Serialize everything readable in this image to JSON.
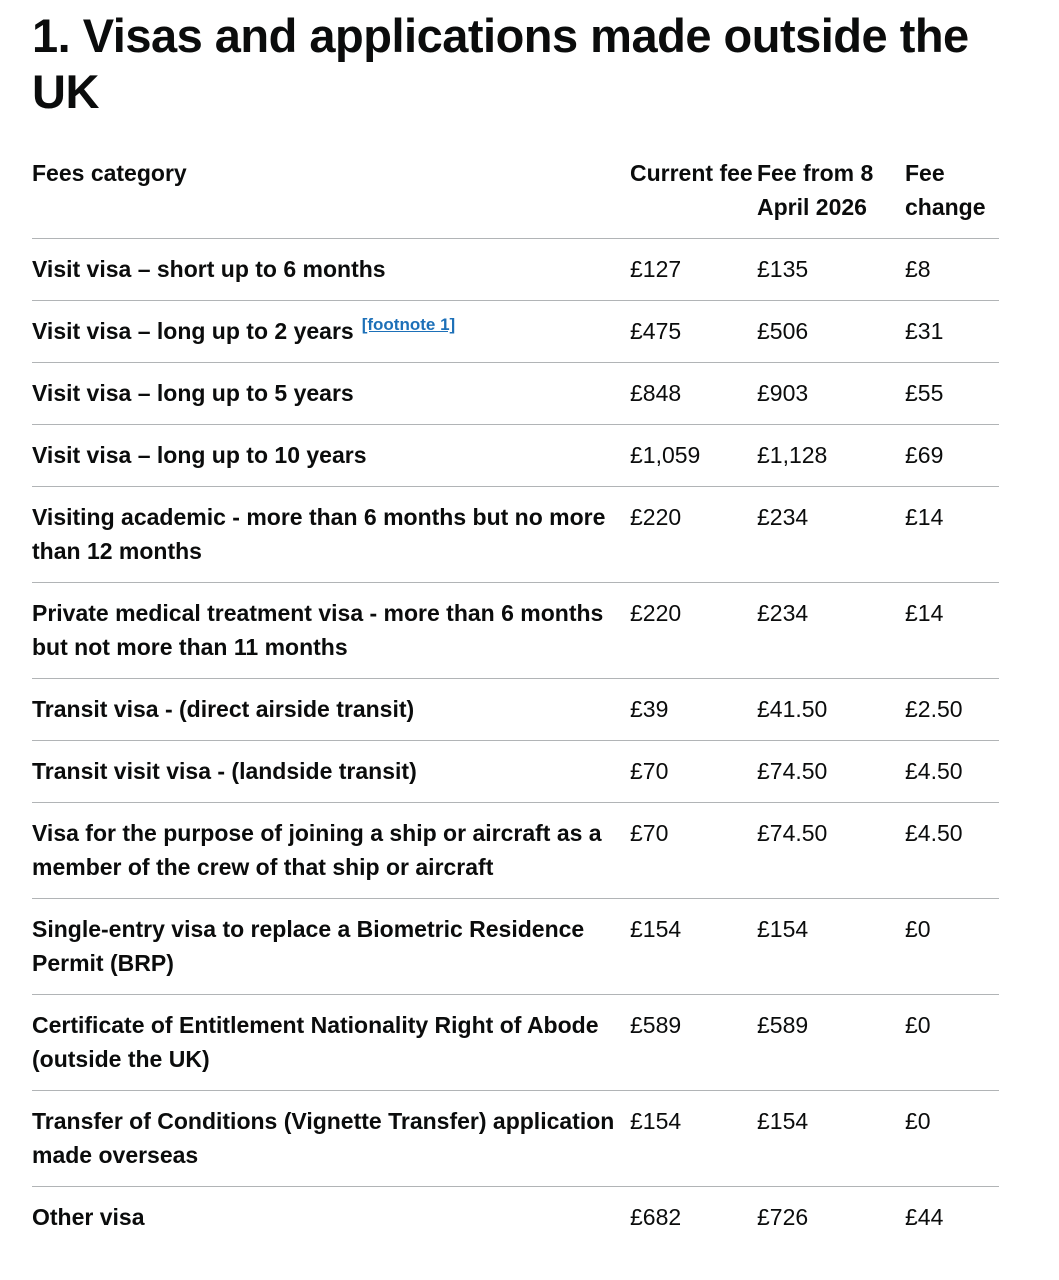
{
  "title": "1. Visas and applications made outside the UK",
  "table": {
    "headers": [
      "Fees category",
      "Current fee",
      "Fee from 8 April 2026",
      "Fee change"
    ],
    "rows": [
      {
        "category": "Visit visa – short up to 6 months",
        "current": "£127",
        "new": "£135",
        "change": "£8"
      },
      {
        "category": "Visit visa – long up to 2 years",
        "footnote": "[footnote 1]",
        "current": "£475",
        "new": "£506",
        "change": "£31"
      },
      {
        "category": "Visit visa – long up to 5 years",
        "current": "£848",
        "new": "£903",
        "change": "£55"
      },
      {
        "category": "Visit visa – long up to 10 years",
        "current": "£1,059",
        "new": "£1,128",
        "change": "£69"
      },
      {
        "category": "Visiting academic - more than 6 months but no more than 12 months",
        "current": "£220",
        "new": "£234",
        "change": "£14"
      },
      {
        "category": "Private medical treatment visa - more than 6 months but not more than 11 months",
        "current": "£220",
        "new": "£234",
        "change": "£14"
      },
      {
        "category": "Transit visa - (direct airside transit)",
        "current": "£39",
        "new": "£41.50",
        "change": "£2.50"
      },
      {
        "category": "Transit visit visa - (landside transit)",
        "current": "£70",
        "new": "£74.50",
        "change": "£4.50"
      },
      {
        "category": "Visa for the purpose of joining a ship or aircraft as a member of the crew of that ship or aircraft",
        "current": "£70",
        "new": "£74.50",
        "change": "£4.50"
      },
      {
        "category": "Single-entry visa to replace a Biometric Residence Permit (BRP)",
        "current": "£154",
        "new": "£154",
        "change": "£0"
      },
      {
        "category": "Certificate of Entitlement Nationality Right of Abode (outside the UK)",
        "current": "£589",
        "new": "£589",
        "change": "£0"
      },
      {
        "category": "Transfer of Conditions (Vignette Transfer) application made overseas",
        "current": "£154",
        "new": "£154",
        "change": "£0"
      },
      {
        "category": "Other visa",
        "current": "£682",
        "new": "£726",
        "change": "£44"
      }
    ]
  },
  "colors": {
    "text": "#0b0c0c",
    "link": "#1d70b8",
    "divider": "#b1b4b6"
  }
}
